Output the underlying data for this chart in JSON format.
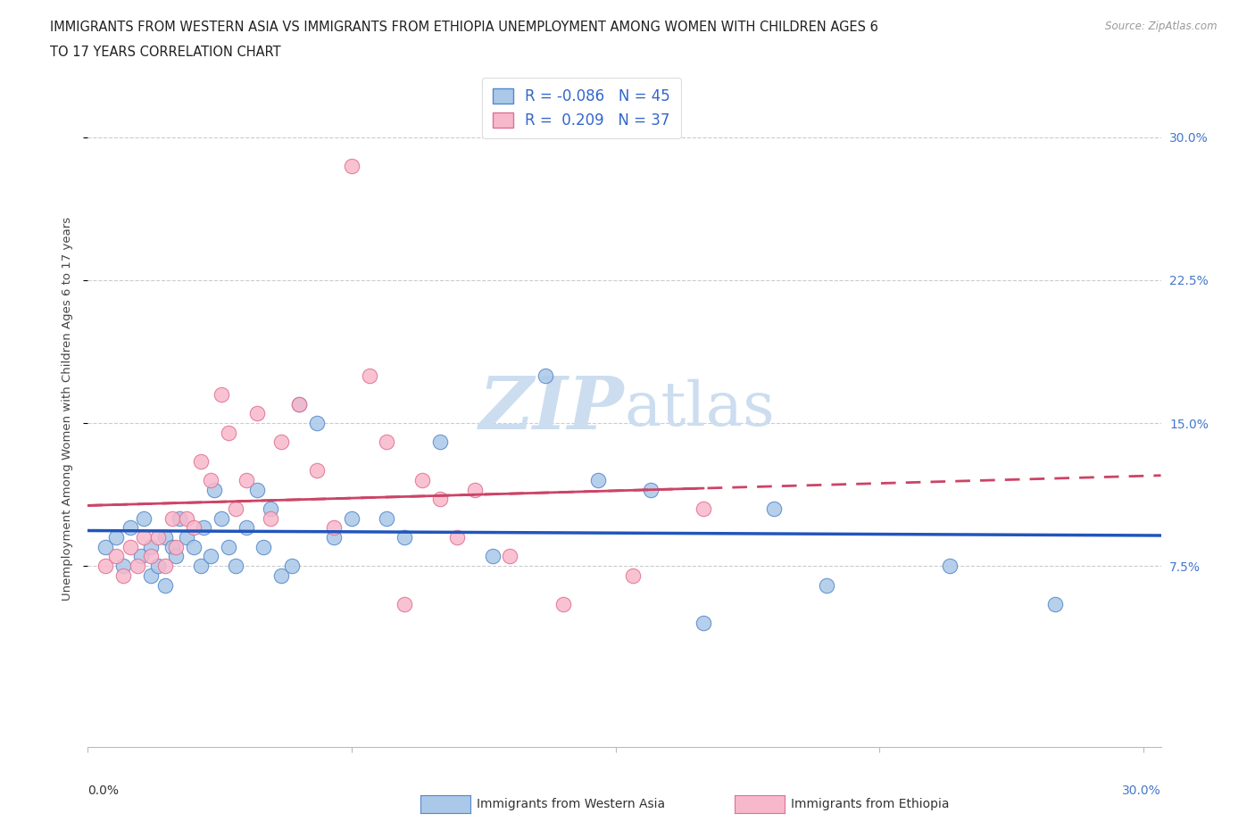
{
  "title_line1": "IMMIGRANTS FROM WESTERN ASIA VS IMMIGRANTS FROM ETHIOPIA UNEMPLOYMENT AMONG WOMEN WITH CHILDREN AGES 6",
  "title_line2": "TO 17 YEARS CORRELATION CHART",
  "source": "Source: ZipAtlas.com",
  "ylabel": "Unemployment Among Women with Children Ages 6 to 17 years",
  "ytick_labels": [
    "7.5%",
    "15.0%",
    "22.5%",
    "30.0%"
  ],
  "ytick_values": [
    0.075,
    0.15,
    0.225,
    0.3
  ],
  "xtick_values": [
    0.0,
    0.075,
    0.15,
    0.225,
    0.3
  ],
  "xlim": [
    0.0,
    0.305
  ],
  "ylim": [
    -0.02,
    0.335
  ],
  "series1_face_color": "#aac8e8",
  "series1_edge_color": "#5588cc",
  "series2_face_color": "#f8b8cc",
  "series2_edge_color": "#e07090",
  "line1_color": "#2255bb",
  "line2_color": "#cc4466",
  "watermark_color": "#ccddf0",
  "background_color": "#ffffff",
  "legend_box_color1": "#aac8e8",
  "legend_box_color2": "#f8b8cc",
  "R1": -0.086,
  "N1": 45,
  "R2": 0.209,
  "N2": 37,
  "western_asia_x": [
    0.005,
    0.008,
    0.01,
    0.012,
    0.015,
    0.016,
    0.018,
    0.018,
    0.02,
    0.022,
    0.022,
    0.024,
    0.025,
    0.026,
    0.028,
    0.03,
    0.032,
    0.033,
    0.035,
    0.036,
    0.038,
    0.04,
    0.042,
    0.045,
    0.048,
    0.05,
    0.052,
    0.055,
    0.058,
    0.06,
    0.065,
    0.07,
    0.075,
    0.085,
    0.09,
    0.1,
    0.115,
    0.13,
    0.145,
    0.16,
    0.175,
    0.195,
    0.21,
    0.245,
    0.275
  ],
  "western_asia_y": [
    0.085,
    0.09,
    0.075,
    0.095,
    0.08,
    0.1,
    0.085,
    0.07,
    0.075,
    0.09,
    0.065,
    0.085,
    0.08,
    0.1,
    0.09,
    0.085,
    0.075,
    0.095,
    0.08,
    0.115,
    0.1,
    0.085,
    0.075,
    0.095,
    0.115,
    0.085,
    0.105,
    0.07,
    0.075,
    0.16,
    0.15,
    0.09,
    0.1,
    0.1,
    0.09,
    0.14,
    0.08,
    0.175,
    0.12,
    0.115,
    0.045,
    0.105,
    0.065,
    0.075,
    0.055
  ],
  "ethiopia_x": [
    0.005,
    0.008,
    0.01,
    0.012,
    0.014,
    0.016,
    0.018,
    0.02,
    0.022,
    0.024,
    0.025,
    0.028,
    0.03,
    0.032,
    0.035,
    0.038,
    0.04,
    0.042,
    0.045,
    0.048,
    0.052,
    0.055,
    0.06,
    0.065,
    0.07,
    0.075,
    0.08,
    0.085,
    0.09,
    0.095,
    0.1,
    0.105,
    0.11,
    0.12,
    0.135,
    0.155,
    0.175
  ],
  "ethiopia_y": [
    0.075,
    0.08,
    0.07,
    0.085,
    0.075,
    0.09,
    0.08,
    0.09,
    0.075,
    0.1,
    0.085,
    0.1,
    0.095,
    0.13,
    0.12,
    0.165,
    0.145,
    0.105,
    0.12,
    0.155,
    0.1,
    0.14,
    0.16,
    0.125,
    0.095,
    0.285,
    0.175,
    0.14,
    0.055,
    0.12,
    0.11,
    0.09,
    0.115,
    0.08,
    0.055,
    0.07,
    0.105
  ]
}
